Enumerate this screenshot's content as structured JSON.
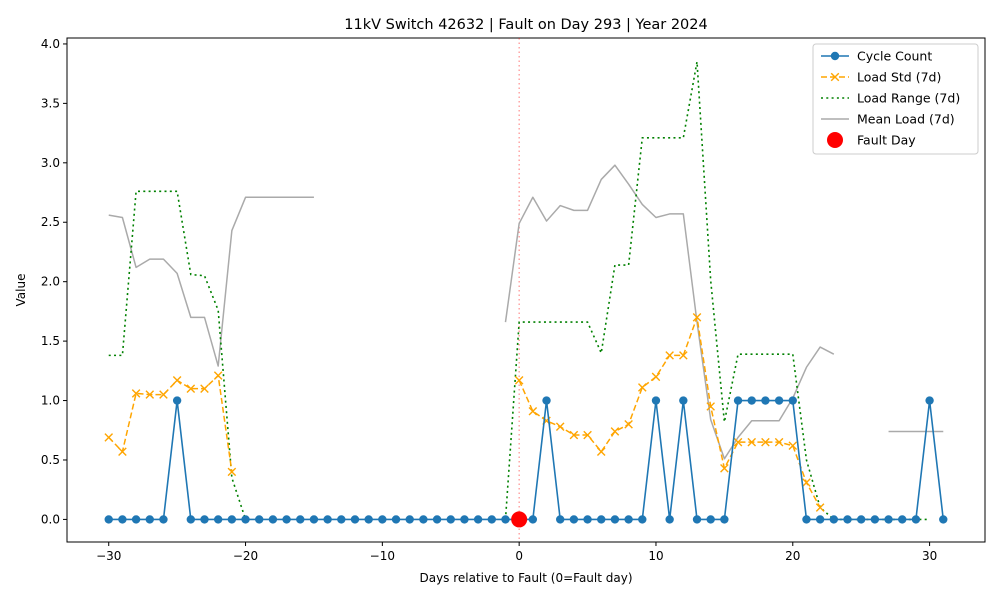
{
  "chart_data": {
    "type": "line",
    "title": "11kV Switch 42632 | Fault on Day 293 | Year 2024",
    "xlabel": "Days relative to Fault (0=Fault day)",
    "ylabel": "Value",
    "xlim": [
      -33.05,
      34.05
    ],
    "ylim": [
      -0.19,
      4.05
    ],
    "xticks": [
      -30,
      -20,
      -10,
      0,
      10,
      20,
      30
    ],
    "xtick_labels": [
      "−30",
      "−20",
      "−10",
      "0",
      "10",
      "20",
      "30"
    ],
    "yticks": [
      0,
      0.5,
      1,
      1.5,
      2,
      2.5,
      3,
      3.5,
      4
    ],
    "ytick_labels": [
      "0.0",
      "0.5",
      "1.0",
      "1.5",
      "2.0",
      "2.5",
      "3.0",
      "3.5",
      "4.0"
    ],
    "fault_line_x": 0,
    "legend_position": "upper right",
    "grid": false,
    "series": [
      {
        "name": "Cycle Count",
        "color": "#1f77b4",
        "style": "solid-circle",
        "x": [
          -30,
          -29,
          -28,
          -27,
          -26,
          -25,
          -24,
          -23,
          -22,
          -21,
          -20,
          -19,
          -18,
          -17,
          -16,
          -15,
          -14,
          -13,
          -12,
          -11,
          -10,
          -9,
          -8,
          -7,
          -6,
          -5,
          -4,
          -3,
          -2,
          -1,
          0,
          1,
          2,
          3,
          4,
          5,
          6,
          7,
          8,
          9,
          10,
          11,
          12,
          13,
          14,
          15,
          16,
          17,
          18,
          19,
          20,
          21,
          22,
          23,
          24,
          25,
          26,
          27,
          28,
          29,
          30,
          31
        ],
        "y": [
          0,
          0,
          0,
          0,
          0,
          1,
          0,
          0,
          0,
          0,
          0,
          0,
          0,
          0,
          0,
          0,
          0,
          0,
          0,
          0,
          0,
          0,
          0,
          0,
          0,
          0,
          0,
          0,
          0,
          0,
          0,
          0,
          1,
          0,
          0,
          0,
          0,
          0,
          0,
          0,
          1,
          0,
          1,
          0,
          0,
          0,
          1,
          1,
          1,
          1,
          1,
          0,
          0,
          0,
          0,
          0,
          0,
          0,
          0,
          0,
          1,
          0
        ]
      },
      {
        "name": "Load Std (7d)",
        "color": "#ffa500",
        "style": "dashed-x",
        "x": [
          -30,
          -29,
          -28,
          -27,
          -26,
          -25,
          -24,
          -23,
          -22,
          -21,
          0,
          1,
          2,
          3,
          4,
          5,
          6,
          7,
          8,
          9,
          10,
          11,
          12,
          13,
          14,
          15,
          16,
          17,
          18,
          19,
          20,
          21,
          22
        ],
        "y": [
          0.69,
          0.57,
          1.06,
          1.05,
          1.05,
          1.17,
          1.1,
          1.1,
          1.21,
          0.4,
          1.17,
          0.91,
          0.83,
          0.78,
          0.71,
          0.71,
          0.57,
          0.74,
          0.8,
          1.11,
          1.2,
          1.38,
          1.38,
          1.7,
          0.95,
          0.43,
          0.65,
          0.65,
          0.65,
          0.65,
          0.62,
          0.31,
          0.1
        ]
      },
      {
        "name": "Load Range (7d)",
        "color": "#008000",
        "style": "dotted",
        "segments": [
          {
            "x": [
              -30,
              -29,
              -28,
              -27,
              -26,
              -25,
              -24,
              -23,
              -22,
              -21,
              -20
            ],
            "y": [
              1.38,
              1.38,
              2.76,
              2.76,
              2.76,
              2.76,
              2.06,
              2.05,
              1.76,
              0.35,
              0.0
            ]
          },
          {
            "x": [
              -1,
              0,
              1,
              2,
              3,
              4,
              5,
              6,
              7,
              8,
              9,
              10,
              11,
              12,
              13,
              14,
              15,
              16,
              17,
              18,
              19,
              20,
              21,
              22,
              23,
              24,
              25,
              26,
              27,
              28,
              29,
              30
            ],
            "y": [
              0.0,
              1.66,
              1.66,
              1.66,
              1.66,
              1.66,
              1.66,
              1.4,
              2.14,
              2.14,
              3.21,
              3.21,
              3.21,
              3.21,
              3.85,
              2.01,
              0.82,
              1.39,
              1.39,
              1.39,
              1.39,
              1.39,
              0.5,
              0.1,
              0.0,
              0.0,
              0.0,
              0.0,
              0.0,
              0.0,
              0.0,
              0.0
            ]
          }
        ]
      },
      {
        "name": "Mean Load (7d)",
        "color": "#aaaaaa",
        "style": "solid",
        "segments": [
          {
            "x": [
              -30,
              -29,
              -28,
              -27,
              -26,
              -25,
              -24,
              -23,
              -22,
              -21,
              -20,
              -19,
              -18,
              -17,
              -16,
              -15
            ],
            "y": [
              2.56,
              2.54,
              2.12,
              2.19,
              2.19,
              2.07,
              1.7,
              1.7,
              1.29,
              2.43,
              2.71,
              2.71,
              2.71,
              2.71,
              2.71,
              2.71
            ]
          },
          {
            "x": [
              -1,
              0,
              1,
              2,
              3,
              4,
              5,
              6,
              7,
              8,
              9,
              10,
              11,
              12,
              13,
              14,
              15,
              16,
              17,
              18,
              19,
              20,
              21,
              22,
              23
            ],
            "y": [
              1.66,
              2.49,
              2.71,
              2.51,
              2.64,
              2.6,
              2.6,
              2.86,
              2.98,
              2.82,
              2.65,
              2.54,
              2.57,
              2.57,
              1.66,
              0.84,
              0.51,
              0.69,
              0.83,
              0.83,
              0.83,
              1.02,
              1.28,
              1.45,
              1.39
            ]
          },
          {
            "x": [
              27,
              28,
              29,
              30,
              31
            ],
            "y": [
              0.74,
              0.74,
              0.74,
              0.74,
              0.74
            ]
          }
        ]
      },
      {
        "name": "Fault Day",
        "color": "#ff0000",
        "style": "marker",
        "x": [
          0
        ],
        "y": [
          0
        ]
      }
    ]
  }
}
